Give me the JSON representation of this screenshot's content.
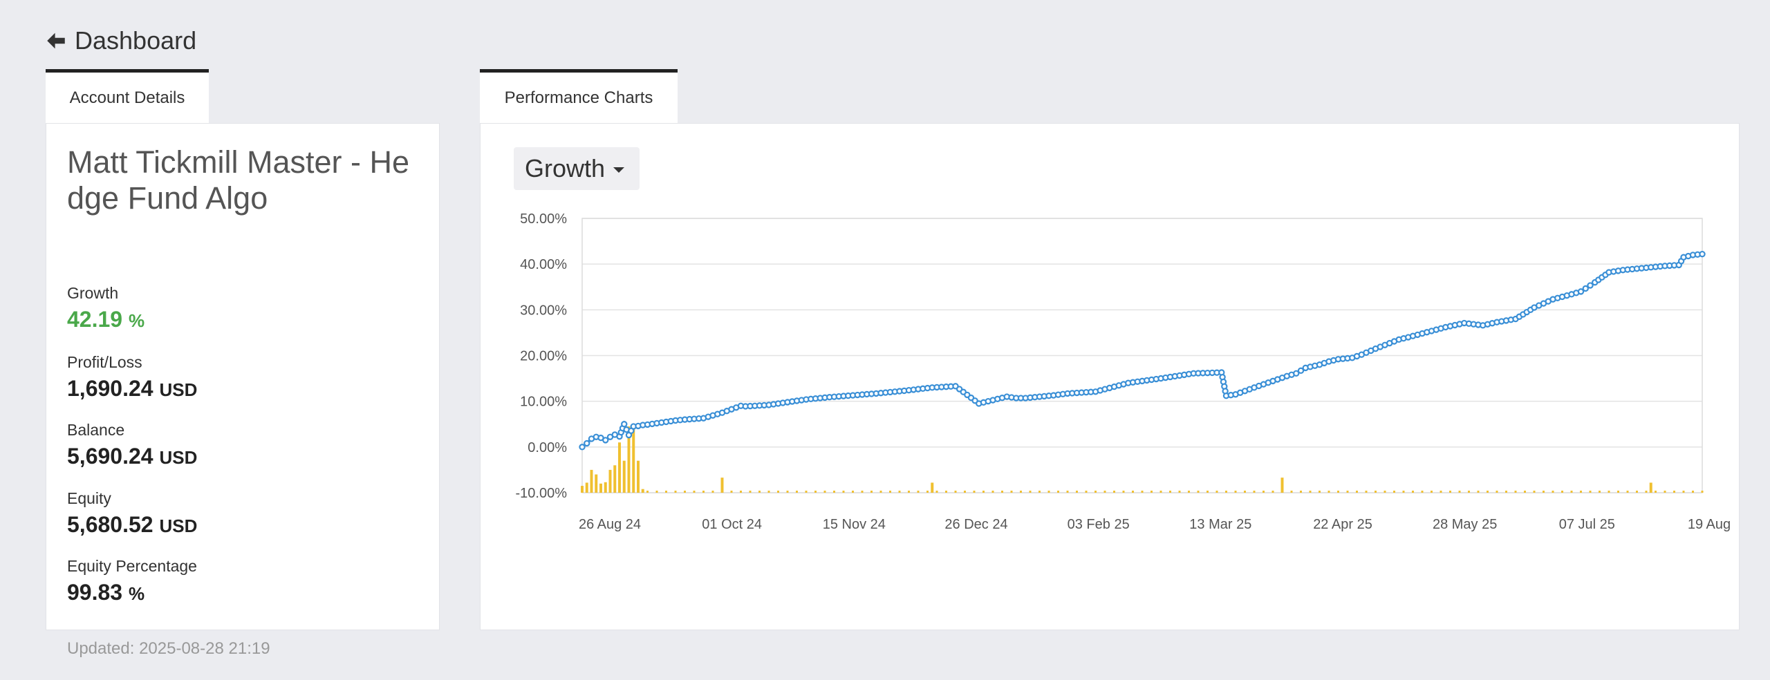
{
  "nav": {
    "back_label": "Dashboard"
  },
  "account": {
    "tab_label": "Account Details",
    "title": "Matt Tickmill Master - Hedge Fund Algo",
    "metrics": [
      {
        "label": "Growth",
        "value": "42.19",
        "unit": "%"
      },
      {
        "label": "Profit/Loss",
        "value": "1,690.24",
        "unit": "USD"
      },
      {
        "label": "Balance",
        "value": "5,690.24",
        "unit": "USD"
      },
      {
        "label": "Equity",
        "value": "5,680.52",
        "unit": "USD"
      },
      {
        "label": "Equity Percentage",
        "value": "99.83",
        "unit": "%"
      }
    ],
    "updated": "Updated: 2025-08-28 21:19"
  },
  "charts": {
    "tab_label": "Performance Charts",
    "selector": {
      "label": "Growth"
    }
  },
  "colors": {
    "line": "#3a8fd6",
    "bars": "#f0c030",
    "positive": "#4aa84a"
  },
  "chart_data": {
    "type": "line",
    "ylim": [
      -10,
      50
    ],
    "y_ticks": [
      "50.00%",
      "40.00%",
      "30.00%",
      "20.00%",
      "10.00%",
      "0.00%",
      "-10.00%"
    ],
    "x_ticks": [
      "26 Aug 24",
      "01 Oct 24",
      "15 Nov 24",
      "26 Dec 24",
      "03 Feb 25",
      "13 Mar 25",
      "22 Apr 25",
      "28 May 25",
      "07 Jul 25",
      "19 Aug"
    ],
    "grid": true,
    "series": [
      {
        "type": "line",
        "x": [
          0,
          1,
          2,
          3,
          4,
          5,
          6,
          7,
          8,
          9,
          10,
          11,
          12,
          13,
          14,
          16,
          18,
          20,
          22,
          26,
          30,
          34,
          35,
          37,
          40,
          44,
          48,
          53,
          58,
          63,
          69,
          75,
          80,
          85,
          91,
          93,
          95,
          98,
          101,
          104,
          110,
          117,
          124,
          131,
          137,
          138,
          140,
          144,
          151,
          153,
          155,
          158,
          160,
          162,
          165,
          167,
          170,
          175,
          177,
          181,
          185,
          189,
          193,
          196,
          200,
          204,
          208,
          212,
          214,
          217,
          220,
          223,
          226,
          229,
          232,
          235,
          236,
          238,
          240
        ],
        "y": [
          0.0,
          0.8,
          1.8,
          2.2,
          2.0,
          1.5,
          2.2,
          2.7,
          2.3,
          5.0,
          2.6,
          4.5,
          4.6,
          4.8,
          4.9,
          5.2,
          5.5,
          5.8,
          6.0,
          6.3,
          7.5,
          9.0,
          8.9,
          9.0,
          9.2,
          9.8,
          10.4,
          10.9,
          11.3,
          11.7,
          12.3,
          13.0,
          13.3,
          9.5,
          11.0,
          10.7,
          10.7,
          11.0,
          11.3,
          11.7,
          12.1,
          14.0,
          15.0,
          16.1,
          16.3,
          11.2,
          11.5,
          13.0,
          15.5,
          16.1,
          17.3,
          18.0,
          18.7,
          19.2,
          19.5,
          20.2,
          21.5,
          23.5,
          24.0,
          25.1,
          26.2,
          27.1,
          26.6,
          27.3,
          28.0,
          30.5,
          32.3,
          33.4,
          34.0,
          36.0,
          38.2,
          38.7,
          39.0,
          39.3,
          39.6,
          39.8,
          41.5,
          42.0,
          42.19
        ]
      },
      {
        "type": "bar",
        "x": [
          0,
          1,
          2,
          3,
          4,
          5,
          6,
          7,
          8,
          9,
          10,
          11,
          12,
          13,
          30,
          75,
          150,
          229
        ],
        "y": [
          -8.5,
          -7.8,
          -5.0,
          -6.0,
          -8.0,
          -7.7,
          -5.0,
          -4.0,
          1.0,
          -3.0,
          4.5,
          4.0,
          -3.0,
          -9.2,
          -6.7,
          -7.8,
          -6.7,
          -7.8
        ]
      }
    ]
  }
}
